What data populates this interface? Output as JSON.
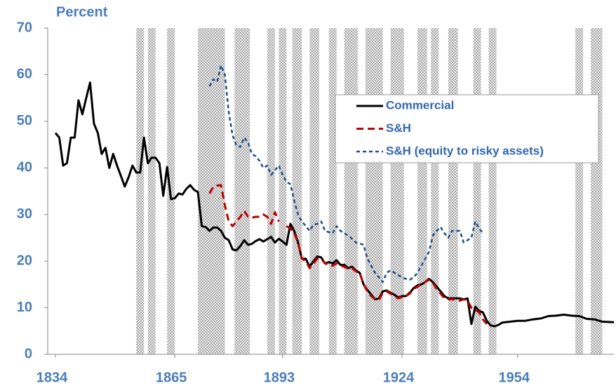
{
  "chart_data": {
    "type": "line",
    "y_label": "Percent",
    "xlim": [
      1832,
      1979
    ],
    "xticks": [
      1834,
      1865,
      1893,
      1924,
      1954
    ],
    "ylim": [
      0,
      70
    ],
    "yticks": [
      0,
      10,
      20,
      30,
      40,
      50,
      60,
      70
    ],
    "grid": false,
    "legend": "upper right",
    "shade_color": "#b8b8b8",
    "shaded_periods": [
      [
        1855,
        1857
      ],
      [
        1858,
        1860
      ],
      [
        1863,
        1865
      ],
      [
        1871,
        1878
      ],
      [
        1880.5,
        1884.5
      ],
      [
        1889,
        1891
      ],
      [
        1892,
        1894
      ],
      [
        1895.5,
        1898
      ],
      [
        1900,
        1902.5
      ],
      [
        1905,
        1907
      ],
      [
        1909,
        1912.5
      ],
      [
        1914.5,
        1919
      ],
      [
        1921,
        1924.5
      ],
      [
        1928,
        1930.5
      ],
      [
        1931.5,
        1933.5
      ],
      [
        1936,
        1938.5
      ],
      [
        1942.5,
        1944.5
      ],
      [
        1946.5,
        1948.5
      ],
      [
        1969,
        1971
      ],
      [
        1973,
        1976
      ]
    ],
    "series": [
      {
        "name": "Commercial",
        "color": "#000000",
        "dash": "solid",
        "x": [
          1834,
          1835,
          1836,
          1837,
          1838,
          1839,
          1840,
          1841,
          1842,
          1843,
          1844,
          1845,
          1846,
          1847,
          1848,
          1849,
          1850,
          1851,
          1852,
          1853,
          1854,
          1855,
          1856,
          1857,
          1858,
          1859,
          1860,
          1861,
          1862,
          1863,
          1864,
          1865,
          1866,
          1867,
          1868,
          1869,
          1870,
          1871,
          1872,
          1873,
          1874,
          1875,
          1876,
          1877,
          1878,
          1879,
          1880,
          1881,
          1882,
          1883,
          1884,
          1885,
          1886,
          1887,
          1888,
          1889,
          1890,
          1891,
          1892,
          1893,
          1894,
          1895,
          1896,
          1897,
          1898,
          1899,
          1900,
          1901,
          1902,
          1903,
          1904,
          1905,
          1906,
          1907,
          1908,
          1909,
          1910,
          1911,
          1912,
          1913,
          1914,
          1915,
          1916,
          1917,
          1918,
          1919,
          1920,
          1921,
          1922,
          1923,
          1924,
          1925,
          1926,
          1927,
          1928,
          1929,
          1930,
          1931,
          1932,
          1933,
          1934,
          1935,
          1936,
          1937,
          1938,
          1939,
          1940,
          1941,
          1942,
          1943,
          1944,
          1945,
          1946,
          1947,
          1948,
          1949,
          1950,
          1952,
          1954,
          1956,
          1958,
          1960,
          1962,
          1964,
          1966,
          1968,
          1970,
          1972,
          1974,
          1976,
          1979
        ],
        "values": [
          47.5,
          46.5,
          40.5,
          41,
          46.5,
          46.5,
          54.5,
          51.5,
          55,
          58.3,
          49.5,
          47.5,
          43,
          44.3,
          40,
          43,
          40.5,
          38.3,
          36,
          38,
          40.5,
          39,
          39,
          46.5,
          41,
          42.2,
          42.2,
          41,
          34,
          40.2,
          33.3,
          33.5,
          34.5,
          34.3,
          35.5,
          36.3,
          35.3,
          34.8,
          27.5,
          27.3,
          26.5,
          27.2,
          27.2,
          26.5,
          25,
          24.5,
          22.5,
          22.3,
          23.2,
          24.5,
          23.5,
          23.7,
          24.3,
          24.7,
          24.2,
          24.7,
          25.2,
          24,
          24.8,
          24.2,
          23.5,
          28,
          26.5,
          24,
          20.5,
          20.5,
          18.8,
          20,
          21,
          20.8,
          19.5,
          19.8,
          19.5,
          20.2,
          19.2,
          19.2,
          18.5,
          18.8,
          18,
          17.5,
          15,
          13.8,
          12.8,
          11.8,
          12,
          13.5,
          13.7,
          13.2,
          12.8,
          12.2,
          12.5,
          12.5,
          13.2,
          14.2,
          14.8,
          15,
          15.5,
          16.2,
          15.5,
          14.5,
          13.5,
          12.5,
          12,
          12,
          12,
          12,
          11.8,
          12,
          6.5,
          10.2,
          9.3,
          9,
          7.2,
          6.2,
          6,
          6.3,
          6.8,
          7,
          7.2,
          7.2,
          7.5,
          7.7,
          8.2,
          8.3,
          8.5,
          8.3,
          8.2,
          7.6,
          7.5,
          7,
          6.9
        ]
      },
      {
        "name": "S&H",
        "color": "#c00000",
        "dash": "long",
        "x": [
          1874,
          1875,
          1876,
          1877,
          1878,
          1879,
          1880,
          1881,
          1882,
          1883,
          1884,
          1885,
          1886,
          1887,
          1888,
          1889,
          1890,
          1891,
          1892,
          1893,
          1894,
          1895,
          1896,
          1897,
          1898,
          1899,
          1900,
          1901,
          1902,
          1903,
          1904,
          1905,
          1906,
          1907,
          1908,
          1909,
          1910,
          1911,
          1912,
          1913,
          1914,
          1915,
          1916,
          1917,
          1918,
          1919,
          1920,
          1921,
          1922,
          1923,
          1924,
          1925,
          1926,
          1927,
          1928,
          1929,
          1930,
          1931,
          1932,
          1933,
          1934,
          1935,
          1936,
          1937,
          1938,
          1939,
          1940,
          1941,
          1942,
          1943,
          1944,
          1945,
          1946
        ],
        "values": [
          34.5,
          36,
          36.2,
          36.3,
          32,
          28.5,
          27.5,
          28.5,
          29.5,
          30.8,
          29.5,
          29.3,
          29.5,
          29.5,
          30,
          29.5,
          28,
          30.5,
          28.5,
          null,
          27.5,
          27,
          26,
          24,
          20.5,
          20,
          18.5,
          19.5,
          20.5,
          20.5,
          19.5,
          19.2,
          19,
          19.5,
          19,
          18.8,
          18.3,
          18.5,
          17.8,
          17.5,
          15,
          13.5,
          12.5,
          11.8,
          11.7,
          13.2,
          13.5,
          13,
          12.5,
          12,
          12.3,
          12.5,
          13,
          14,
          14.5,
          15,
          15.5,
          16,
          15.3,
          14,
          13,
          12,
          11.8,
          11.8,
          11.8,
          11.5,
          11.8,
          11.5,
          10,
          9.5,
          9,
          7.5,
          6.5
        ]
      },
      {
        "name": "S&H (equity to risky assets)",
        "color": "#1f4e8c",
        "dash": "short",
        "x": [
          1874,
          1875,
          1876,
          1877,
          1878,
          1879,
          1880,
          1881,
          1882,
          1883,
          1884,
          1885,
          1886,
          1887,
          1888,
          1889,
          1890,
          1891,
          1892,
          1893,
          1894,
          1895,
          1896,
          1897,
          1898,
          1899,
          1900,
          1901,
          1902,
          1903,
          1904,
          1905,
          1906,
          1907,
          1908,
          1909,
          1910,
          1911,
          1912,
          1913,
          1914,
          1915,
          1916,
          1917,
          1918,
          1919,
          1920,
          1921,
          1922,
          1923,
          1924,
          1925,
          1926,
          1927,
          1928,
          1929,
          1930,
          1931,
          1932,
          1933,
          1934,
          1935,
          1936,
          1937,
          1938,
          1939,
          1940,
          1941,
          1942,
          1943,
          1944,
          1945
        ],
        "values": [
          57.5,
          59,
          58.5,
          62,
          60,
          52,
          47,
          44.8,
          44.5,
          46.5,
          45.5,
          43,
          42.5,
          41.5,
          40,
          40.5,
          38.5,
          39.5,
          40.5,
          38.5,
          37,
          36.5,
          33,
          30,
          28.5,
          27.5,
          26.5,
          27.8,
          28,
          28.5,
          26.5,
          26.2,
          26,
          27.5,
          26.5,
          26,
          25.5,
          24.8,
          24,
          23.8,
          23.5,
          20.5,
          19,
          17.5,
          16.5,
          15.5,
          17.5,
          18,
          17.5,
          17,
          16.5,
          16.2,
          16,
          16.5,
          17.5,
          19,
          20.5,
          22,
          25.5,
          26.5,
          27.3,
          26,
          25,
          26.5,
          26.5,
          26.5,
          24,
          24.5,
          25,
          28.5,
          27,
          26
        ]
      }
    ]
  }
}
